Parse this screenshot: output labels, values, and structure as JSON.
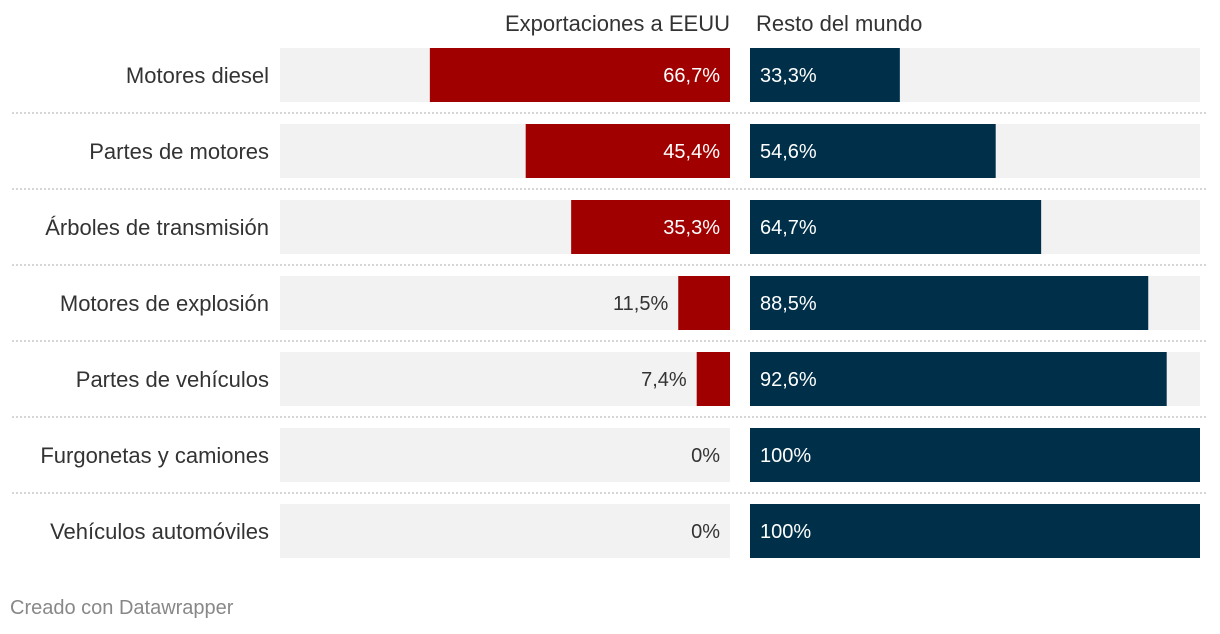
{
  "chart_data": {
    "type": "bar",
    "subtype": "split-bar",
    "columns": [
      "Exportaciones a EEUU",
      "Resto del mundo"
    ],
    "categories": [
      "Motores diesel",
      "Partes de motores",
      "Árboles de transmisión",
      "Motores de explosión",
      "Partes de vehículos",
      "Furgonetas y camiones",
      "Vehículos automóviles"
    ],
    "series": [
      {
        "name": "Exportaciones a EEUU",
        "values": [
          66.7,
          45.4,
          35.3,
          11.5,
          7.4,
          0,
          0
        ],
        "labels": [
          "66,7%",
          "45,4%",
          "35,3%",
          "11,5%",
          "7,4%",
          "0%",
          "0%"
        ]
      },
      {
        "name": "Resto del mundo",
        "values": [
          33.3,
          54.6,
          64.7,
          88.5,
          92.6,
          100,
          100
        ],
        "labels": [
          "33,3%",
          "54,6%",
          "64,7%",
          "88,5%",
          "92,6%",
          "100%",
          "100%"
        ]
      }
    ],
    "range": [
      0,
      100
    ],
    "colors": {
      "usa": "#a00000",
      "rest": "#003049",
      "track": "#f2f2f2",
      "separator": "#c8c8c8",
      "label_inside": "#ffffff",
      "label_outside": "#333333"
    }
  },
  "footer": {
    "credit": "Creado con Datawrapper"
  }
}
